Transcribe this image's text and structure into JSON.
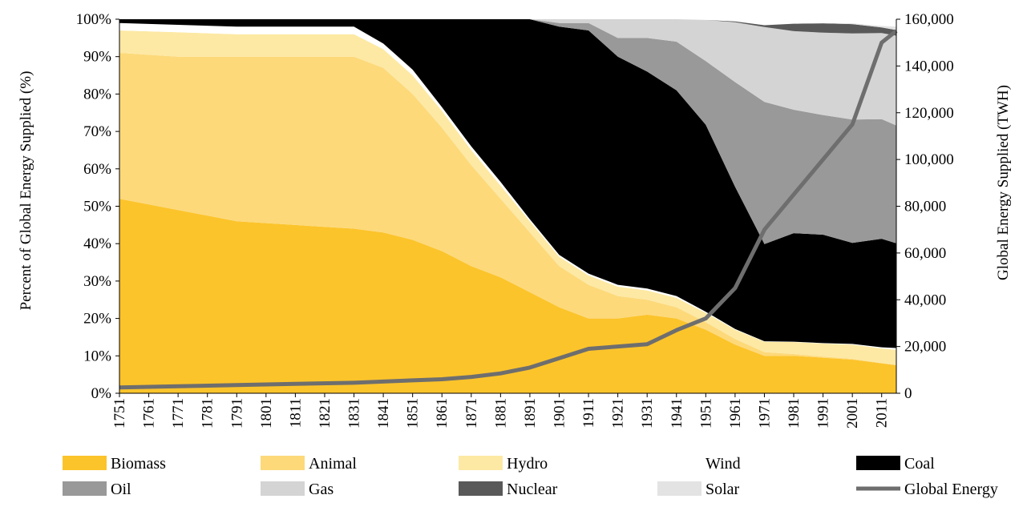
{
  "chart_data": {
    "type": "area",
    "title": "",
    "xlabel": "",
    "ylabel": "Percent of Global Energy Supplied (%)",
    "y2label": "Global Energy Supplied (TWH)",
    "ylim": [
      0,
      100
    ],
    "y2lim": [
      0,
      160000
    ],
    "grid": false,
    "legend_position": "bottom",
    "x_ticks": [
      "1751",
      "1761",
      "1771",
      "1781",
      "1791",
      "1801",
      "1811",
      "1821",
      "1831",
      "1841",
      "1851",
      "1861",
      "1871",
      "1881",
      "1891",
      "1901",
      "1911",
      "1921",
      "1931",
      "1941",
      "1951",
      "1961",
      "1971",
      "1981",
      "1991",
      "2001",
      "2011"
    ],
    "y_ticks": [
      "0%",
      "10%",
      "20%",
      "30%",
      "40%",
      "50%",
      "60%",
      "70%",
      "80%",
      "90%",
      "100%"
    ],
    "y2_ticks": [
      "0",
      "20,000",
      "40,000",
      "60,000",
      "80,000",
      "100,000",
      "120,000",
      "140,000",
      "160,000"
    ],
    "x": [
      1751,
      1771,
      1791,
      1811,
      1831,
      1841,
      1851,
      1861,
      1871,
      1881,
      1891,
      1901,
      1911,
      1921,
      1931,
      1941,
      1951,
      1961,
      1971,
      1981,
      1991,
      2001,
      2011,
      2016
    ],
    "series": [
      {
        "name": "Biomass",
        "color": "#fcc42b",
        "values": [
          52,
          49,
          46,
          45,
          44,
          43,
          41,
          38,
          34,
          31,
          27,
          23,
          20,
          20,
          21,
          20,
          17,
          13,
          10,
          10,
          9.5,
          9,
          8,
          7.5
        ]
      },
      {
        "name": "Animal",
        "color": "#fdd97a",
        "values": [
          39,
          41,
          44,
          45,
          46,
          44,
          39,
          33,
          27,
          21,
          16,
          11,
          9,
          6,
          4,
          3,
          2,
          1.5,
          1,
          0.5,
          0.3,
          0.2,
          0.1,
          0.1
        ]
      },
      {
        "name": "Hydro",
        "color": "#fde9a4",
        "values": [
          6,
          6.5,
          6,
          6,
          6,
          5,
          5,
          4.5,
          4,
          3.5,
          3,
          2.5,
          2.5,
          2.5,
          2.5,
          2.5,
          2.5,
          2.5,
          2.8,
          3.2,
          3.5,
          3.8,
          3.9,
          4
        ]
      },
      {
        "name": "Wind",
        "color": "#ffffff",
        "values": [
          2,
          2,
          2,
          2,
          2,
          1.5,
          1.5,
          1,
          1,
          1,
          0.5,
          0.5,
          0.5,
          0.5,
          0.5,
          0.5,
          0.3,
          0.2,
          0.1,
          0.1,
          0.1,
          0.2,
          0.3,
          0.5
        ]
      },
      {
        "name": "Coal",
        "color": "#000000",
        "values": [
          1,
          1.5,
          2,
          2,
          2,
          6.5,
          13.5,
          23.5,
          34,
          43.5,
          53.5,
          61,
          65,
          61,
          58,
          55,
          50,
          38,
          26,
          29,
          29,
          27,
          29,
          28
        ]
      },
      {
        "name": "Oil",
        "color": "#999999",
        "values": [
          0,
          0,
          0,
          0,
          0,
          0,
          0,
          0,
          0,
          0,
          0,
          1,
          2,
          5,
          9,
          13,
          17,
          28,
          38,
          33,
          32,
          33,
          32,
          31.5
        ]
      },
      {
        "name": "Gas",
        "color": "#d4d4d4",
        "values": [
          0,
          0,
          0,
          0,
          0,
          0,
          0,
          0,
          0,
          0,
          0,
          1,
          1,
          5,
          5,
          6,
          11,
          16,
          20,
          21,
          22,
          23,
          23,
          24
        ]
      },
      {
        "name": "Nuclear",
        "color": "#595959",
        "values": [
          0,
          0,
          0,
          0,
          0,
          0,
          0,
          0,
          0,
          0,
          0,
          0,
          0,
          0,
          0,
          0,
          0,
          0.2,
          0.5,
          2,
          2.5,
          2.5,
          1.5,
          1.5
        ]
      },
      {
        "name": "Solar",
        "color": "#e3e3e3",
        "values": [
          0,
          0,
          0,
          0,
          0,
          0,
          0,
          0,
          0,
          0,
          0,
          0,
          0,
          0,
          0,
          0,
          0,
          0,
          0,
          0,
          0.1,
          0.2,
          0.4,
          0.9
        ]
      }
    ],
    "line_series": {
      "name": "Global Energy",
      "color": "#6e6e6e",
      "axis": "right",
      "x": [
        1751,
        1771,
        1791,
        1811,
        1831,
        1841,
        1851,
        1861,
        1871,
        1881,
        1891,
        1901,
        1911,
        1921,
        1931,
        1941,
        1951,
        1961,
        1971,
        1981,
        1991,
        2001,
        2011,
        2016
      ],
      "values": [
        2500,
        3000,
        3500,
        4000,
        4500,
        5000,
        5500,
        6000,
        7000,
        8500,
        11000,
        15000,
        19000,
        20000,
        21000,
        27000,
        32000,
        45000,
        70000,
        85000,
        100000,
        115000,
        150000,
        155000
      ]
    },
    "legend": [
      "Biomass",
      "Animal",
      "Hydro",
      "Wind",
      "Coal",
      "Oil",
      "Gas",
      "Nuclear",
      "Solar",
      "Global Energy"
    ]
  }
}
